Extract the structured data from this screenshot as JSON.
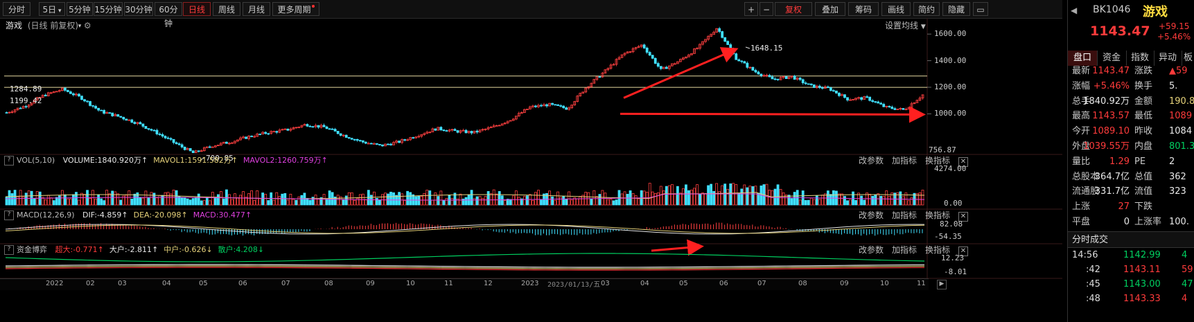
{
  "toolbar": {
    "periods": [
      "分时",
      "5日",
      "5分钟",
      "15分钟",
      "30分钟",
      "60分钟",
      "日线",
      "周线",
      "月线",
      "更多周期"
    ],
    "active_period": "日线",
    "right_buttons": [
      "复权",
      "叠加",
      "筹码",
      "画线",
      "简约",
      "隐藏"
    ],
    "plus": "+",
    "minus": "−"
  },
  "chart_title": "游戏",
  "chart_subtitle": "(日线 前复权)",
  "ma_setting": "设置均线",
  "price_axis": [
    "1600.00",
    "1400.00",
    "1200.00",
    "1000.00"
  ],
  "current_right_label": "756.87",
  "hlines": [
    {
      "label": "1284.89",
      "value": 1284.89
    },
    {
      "label": "1199.42",
      "value": 1199.42
    }
  ],
  "annotations": {
    "high": "1648.15",
    "low": "700.85",
    "cursor_date": "2023/01/13/五"
  },
  "vol": {
    "title": "VOL(5,10)",
    "items": [
      {
        "label": "VOLUME:1840.920万",
        "arrow": "↑",
        "color": "#e8e8e8"
      },
      {
        "label": "MAVOL1:1591.582万",
        "arrow": "↑",
        "color": "#e6d27a"
      },
      {
        "label": "MAVOL2:1260.759万",
        "arrow": "↑",
        "color": "#e040e0"
      }
    ],
    "axis": [
      "4274.00",
      "0.00"
    ]
  },
  "macd": {
    "title": "MACD(12,26,9)",
    "items": [
      {
        "label": "DIF:-4.859",
        "arrow": "↑",
        "color": "#e8e8e8"
      },
      {
        "label": "DEA:-20.098",
        "arrow": "↑",
        "color": "#e6d27a"
      },
      {
        "label": "MACD:30.477",
        "arrow": "↑",
        "color": "#e040e0"
      }
    ],
    "axis": [
      "82.08",
      "-54.35"
    ]
  },
  "fund": {
    "title": "资金博弈",
    "items": [
      {
        "label": "超大:-0.771",
        "arrow": "↑",
        "color": "#ff3b3b"
      },
      {
        "label": "大户:-2.811",
        "arrow": "↑",
        "color": "#e8e8e8"
      },
      {
        "label": "中户:-0.626",
        "arrow": "↓",
        "color": "#e6d27a"
      },
      {
        "label": "散户:4.208",
        "arrow": "↓",
        "color": "#00d060"
      }
    ],
    "axis": [
      "12.23",
      "-8.01"
    ]
  },
  "panel_actions": [
    "改参数",
    "加指标",
    "换指标"
  ],
  "close_glyph": "✕",
  "x_axis": [
    "2022",
    "02",
    "03",
    "04",
    "05",
    "06",
    "07",
    "08",
    "09",
    "10",
    "11",
    "12",
    "2023",
    "03",
    "04",
    "05",
    "06",
    "07",
    "08",
    "09",
    "10",
    "11"
  ],
  "side": {
    "code": "BK1046",
    "name": "游戏",
    "price": "1143.47",
    "change": "+59.15",
    "change_pct": "+5.46%",
    "tabs": [
      "盘口",
      "资金",
      "指数",
      "异动",
      "板"
    ],
    "rows": [
      {
        "k": "最新",
        "v": "1143.47",
        "vc": "r",
        "k2": "涨跌",
        "v2": "▲59",
        "v2c": "r"
      },
      {
        "k": "涨幅",
        "v": "+5.46%",
        "vc": "r",
        "k2": "换手",
        "v2": "5.",
        "v2c": "w"
      },
      {
        "k": "总手",
        "v": "1840.92万",
        "vc": "w",
        "k2": "金额",
        "v2": "190.8",
        "v2c": "y"
      },
      {
        "k": "最高",
        "v": "1143.57",
        "vc": "r",
        "k2": "最低",
        "v2": "1089",
        "v2c": "r"
      },
      {
        "k": "今开",
        "v": "1089.10",
        "vc": "r",
        "k2": "昨收",
        "v2": "1084",
        "v2c": "w"
      },
      {
        "k": "外盘",
        "v": "1039.55万",
        "vc": "r",
        "k2": "内盘",
        "v2": "801.3",
        "v2c": "g"
      },
      {
        "k": "量比",
        "v": "1.29",
        "vc": "r",
        "k2": "PE",
        "v2": "2",
        "v2c": "w"
      },
      {
        "k": "总股本",
        "v": "364.7亿",
        "vc": "w",
        "k2": "总值",
        "v2": "362",
        "v2c": "w"
      },
      {
        "k": "流通股",
        "v": "331.7亿",
        "vc": "w",
        "k2": "流值",
        "v2": "323",
        "v2c": "w"
      },
      {
        "k": "上涨",
        "v": "27",
        "vc": "r",
        "k2": "下跌",
        "v2": "",
        "v2c": "g"
      },
      {
        "k": "平盘",
        "v": "0",
        "vc": "w",
        "k2": "上涨率",
        "v2": "100.",
        "v2c": "w"
      }
    ],
    "ticks_title": "分时成交",
    "ticks": [
      {
        "t": "14:56",
        "p": "1142.99",
        "v": "4",
        "c": "g"
      },
      {
        "t": ":42",
        "p": "1143.11",
        "v": "59",
        "c": "r"
      },
      {
        "t": ":45",
        "p": "1143.00",
        "v": "47",
        "c": "g"
      },
      {
        "t": ":48",
        "p": "1143.33",
        "v": "4",
        "c": "r"
      }
    ]
  },
  "chart_data": {
    "type": "candlestick",
    "title": "游戏",
    "ylim": [
      700,
      1700
    ],
    "x_ticks": [
      "2022",
      "02",
      "03",
      "04",
      "05",
      "06",
      "07",
      "08",
      "09",
      "10",
      "11",
      "12",
      "2023",
      "03",
      "04",
      "05",
      "06",
      "07",
      "08",
      "09",
      "10",
      "11"
    ],
    "close_path": [
      [
        "2022-01",
        1010
      ],
      [
        "2022-01",
        1060
      ],
      [
        "2022-01",
        1140
      ],
      [
        "2022-02",
        1185
      ],
      [
        "2022-02",
        1120
      ],
      [
        "2022-03",
        1020
      ],
      [
        "2022-03",
        980
      ],
      [
        "2022-04",
        930
      ],
      [
        "2022-04",
        860
      ],
      [
        "2022-04",
        780
      ],
      [
        "2022-05",
        705
      ],
      [
        "2022-05",
        760
      ],
      [
        "2022-06",
        790
      ],
      [
        "2022-06",
        830
      ],
      [
        "2022-07",
        860
      ],
      [
        "2022-07",
        880
      ],
      [
        "2022-08",
        920
      ],
      [
        "2022-08",
        900
      ],
      [
        "2022-09",
        840
      ],
      [
        "2022-09",
        790
      ],
      [
        "2022-10",
        760
      ],
      [
        "2022-10",
        790
      ],
      [
        "2022-11",
        840
      ],
      [
        "2022-11",
        890
      ],
      [
        "2022-12",
        870
      ],
      [
        "2022-12",
        860
      ],
      [
        "2023-01",
        900
      ],
      [
        "2023-02",
        960
      ],
      [
        "2023-02",
        1050
      ],
      [
        "2023-03",
        1070
      ],
      [
        "2023-03",
        1040
      ],
      [
        "2023-04",
        1200
      ],
      [
        "2023-04",
        1320
      ],
      [
        "2023-05",
        1450
      ],
      [
        "2023-05",
        1520
      ],
      [
        "2023-05",
        1330
      ],
      [
        "2023-06",
        1400
      ],
      [
        "2023-06",
        1500
      ],
      [
        "2023-06",
        1648
      ],
      [
        "2023-07",
        1420
      ],
      [
        "2023-07",
        1320
      ],
      [
        "2023-08",
        1260
      ],
      [
        "2023-08",
        1280
      ],
      [
        "2023-09",
        1210
      ],
      [
        "2023-09",
        1190
      ],
      [
        "2023-10",
        1110
      ],
      [
        "2023-10",
        1120
      ],
      [
        "2023-10",
        1050
      ],
      [
        "2023-11",
        1030
      ],
      [
        "2023-11",
        1143
      ]
    ]
  }
}
